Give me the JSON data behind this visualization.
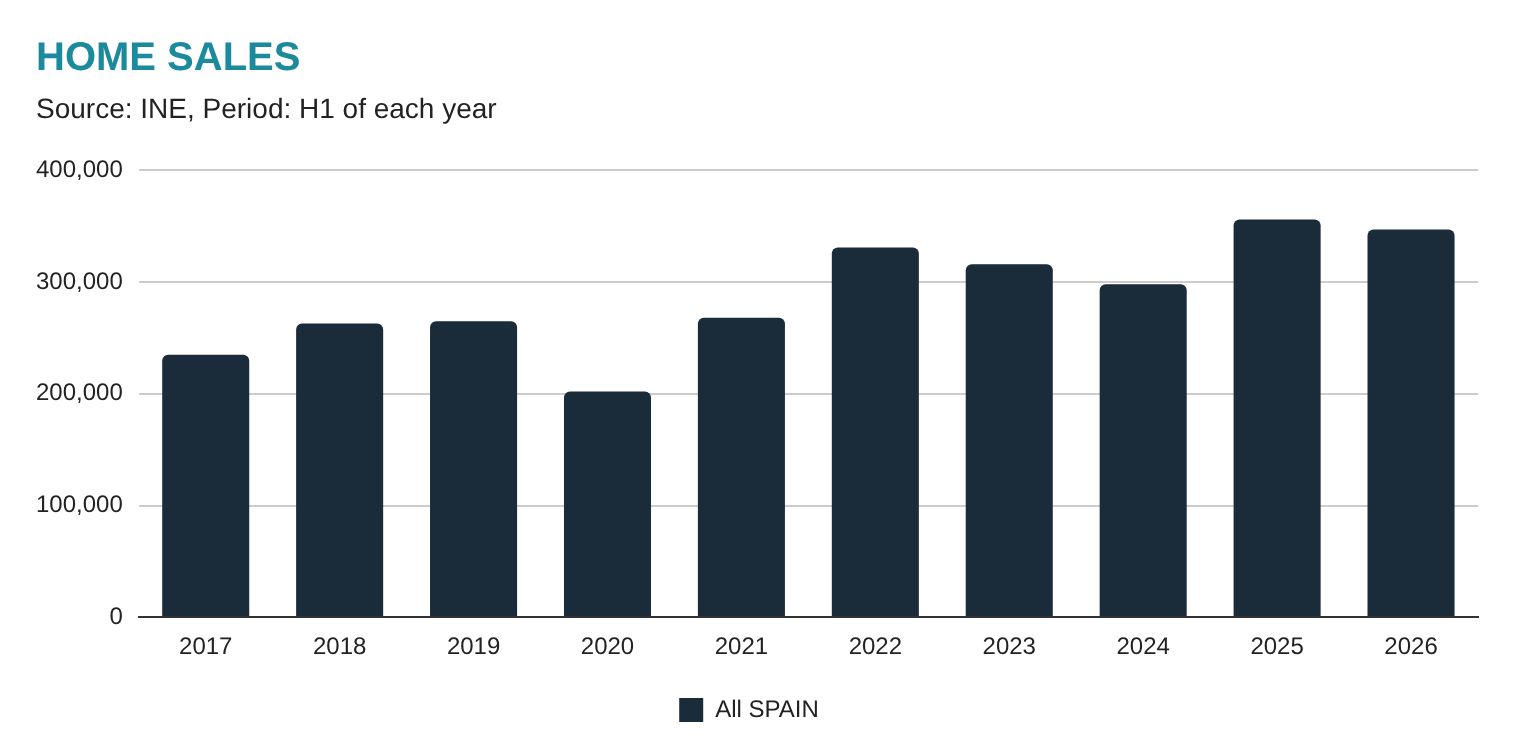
{
  "chart_data": {
    "type": "bar",
    "title": "HOME SALES",
    "subtitle": "Source: INE, Period: H1 of each year",
    "categories": [
      "2017",
      "2018",
      "2019",
      "2020",
      "2021",
      "2022",
      "2023",
      "2024",
      "2025",
      "2026"
    ],
    "series": [
      {
        "name": "All SPAIN",
        "color": "#1a2b3a",
        "values": [
          235000,
          263000,
          265000,
          202000,
          268000,
          331000,
          316000,
          298000,
          356000,
          347000
        ]
      }
    ],
    "ylim": [
      0,
      400000
    ],
    "yticks": [
      0,
      {
        "value": 100000,
        "label": "100,000"
      },
      {
        "value": 200000,
        "label": "200,000"
      },
      {
        "value": 300000,
        "label": "300,000"
      },
      {
        "value": 400000,
        "label": "400,000"
      }
    ],
    "grid": "y",
    "legend": "bottom"
  }
}
